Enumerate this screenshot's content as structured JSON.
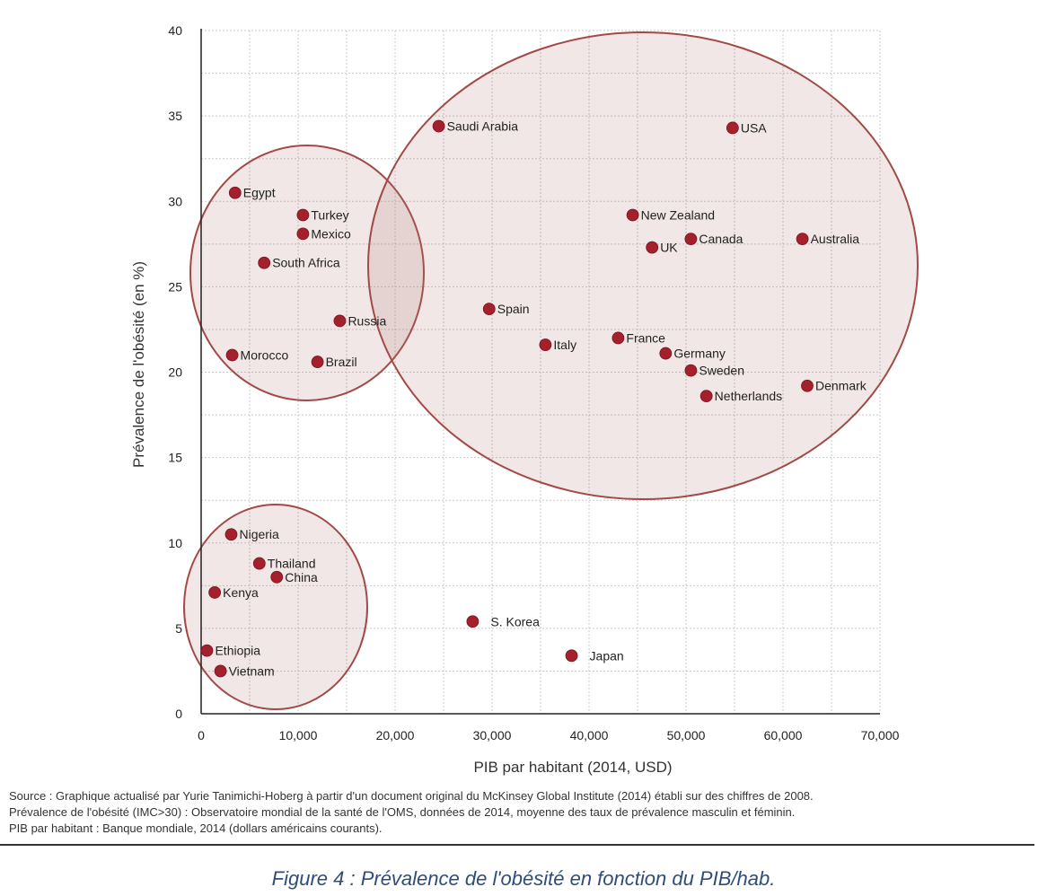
{
  "chart_data": {
    "type": "scatter",
    "xlabel": "PIB par habitant (2014, USD)",
    "ylabel": "Prévalence de l'obésité (en %)",
    "xlim": [
      0,
      70000
    ],
    "ylim": [
      0,
      40
    ],
    "x_ticks": [
      "0",
      "10,000",
      "20,000",
      "30,000",
      "40,000",
      "50,000",
      "60,000",
      "70,000"
    ],
    "y_ticks": [
      "0",
      "5",
      "10",
      "15",
      "20",
      "25",
      "30",
      "35",
      "40"
    ],
    "grid": true,
    "point_color": "#a3202c",
    "points": [
      {
        "label": "Saudi Arabia",
        "x": 24500,
        "y": 34.4
      },
      {
        "label": "USA",
        "x": 54800,
        "y": 34.3
      },
      {
        "label": "Egypt",
        "x": 3500,
        "y": 30.5
      },
      {
        "label": "Turkey",
        "x": 10500,
        "y": 29.2
      },
      {
        "label": "New Zealand",
        "x": 44500,
        "y": 29.2
      },
      {
        "label": "Mexico",
        "x": 10500,
        "y": 28.1
      },
      {
        "label": "UK",
        "x": 46500,
        "y": 27.3
      },
      {
        "label": "Canada",
        "x": 50500,
        "y": 27.8
      },
      {
        "label": "Australia",
        "x": 62000,
        "y": 27.8
      },
      {
        "label": "South Africa",
        "x": 6500,
        "y": 26.4
      },
      {
        "label": "Spain",
        "x": 29700,
        "y": 23.7
      },
      {
        "label": "Russia",
        "x": 14300,
        "y": 23.0
      },
      {
        "label": "France",
        "x": 43000,
        "y": 22.0
      },
      {
        "label": "Italy",
        "x": 35500,
        "y": 21.6
      },
      {
        "label": "Germany",
        "x": 47900,
        "y": 21.1
      },
      {
        "label": "Morocco",
        "x": 3200,
        "y": 21.0
      },
      {
        "label": "Brazil",
        "x": 12000,
        "y": 20.6
      },
      {
        "label": "Sweden",
        "x": 50500,
        "y": 20.1
      },
      {
        "label": "Denmark",
        "x": 62500,
        "y": 19.2
      },
      {
        "label": "Netherlands",
        "x": 52100,
        "y": 18.6
      },
      {
        "label": "Nigeria",
        "x": 3100,
        "y": 10.5
      },
      {
        "label": "Thailand",
        "x": 6000,
        "y": 8.8
      },
      {
        "label": "China",
        "x": 7800,
        "y": 8.0
      },
      {
        "label": "Kenya",
        "x": 1400,
        "y": 7.1
      },
      {
        "label": "S. Korea",
        "x": 28000,
        "y": 5.4
      },
      {
        "label": "Japan",
        "x": 38200,
        "y": 3.4
      },
      {
        "label": "Ethiopia",
        "x": 600,
        "y": 3.7
      },
      {
        "label": "Vietnam",
        "x": 2000,
        "y": 2.5
      }
    ]
  },
  "source_lines": [
    "Source : Graphique actualisé par Yurie Tanimichi-Hoberg à partir d'un document original du McKinsey Global Institute (2014) établi sur des chiffres de 2008.",
    "Prévalence de l'obésité (IMC>30) : Observatoire mondial de la santé de l'OMS, données de 2014, moyenne des taux de prévalence masculin et féminin.",
    "PIB par habitant : Banque mondiale, 2014 (dollars américains courants)."
  ],
  "caption": "Figure 4 : Prévalence de l'obésité en fonction du PIB/hab.",
  "colors": {
    "cluster_fill": "#e6d3d0",
    "cluster_stroke": "#a24a47",
    "caption": "#2f4d7a"
  }
}
